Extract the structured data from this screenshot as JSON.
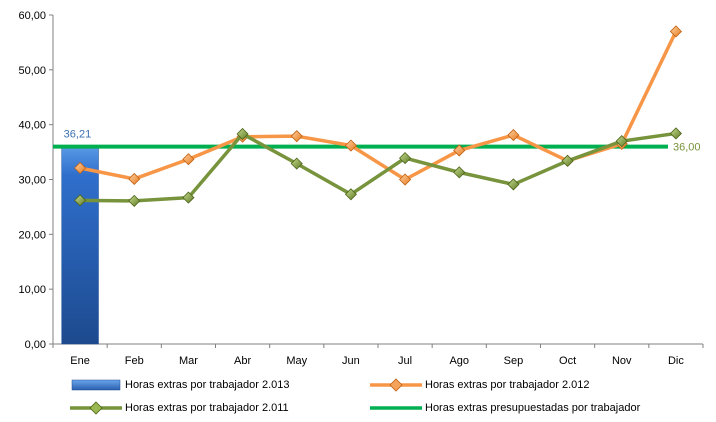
{
  "chart_data": {
    "type": "bar+line",
    "categories": [
      "Ene",
      "Feb",
      "Mar",
      "Abr",
      "May",
      "Jun",
      "Jul",
      "Ago",
      "Sep",
      "Oct",
      "Nov",
      "Dic"
    ],
    "ylim": [
      0,
      60
    ],
    "yticks": [
      "0,00",
      "10,00",
      "20,00",
      "30,00",
      "40,00",
      "50,00",
      "60,00"
    ],
    "grid": false,
    "legend_position": "bottom",
    "series": [
      {
        "name": "Horas extras por trabajador 2.013",
        "kind": "bar",
        "color": "#2e6bc4",
        "values": [
          36.21,
          null,
          null,
          null,
          null,
          null,
          null,
          null,
          null,
          null,
          null,
          null
        ],
        "data_label": "36,21"
      },
      {
        "name": "Horas extras por trabajador 2.012",
        "kind": "line",
        "color": "#f79646",
        "values": [
          32.1,
          30.1,
          33.7,
          37.8,
          37.9,
          36.2,
          30.0,
          35.3,
          38.1,
          33.4,
          36.5,
          57.0
        ]
      },
      {
        "name": "Horas extras por trabajador 2.011",
        "kind": "line",
        "color": "#77933c",
        "values": [
          26.2,
          26.1,
          26.7,
          38.3,
          32.9,
          27.3,
          33.9,
          31.3,
          29.1,
          33.4,
          37.0,
          38.4
        ]
      },
      {
        "name": "Horas extras presupuestadas por trabajador",
        "kind": "line",
        "color": "#00b050",
        "values": [
          36.0,
          36.0,
          36.0,
          36.0,
          36.0,
          36.0,
          36.0,
          36.0,
          36.0,
          36.0,
          36.0,
          36.0
        ],
        "data_label": "36,00"
      }
    ]
  }
}
